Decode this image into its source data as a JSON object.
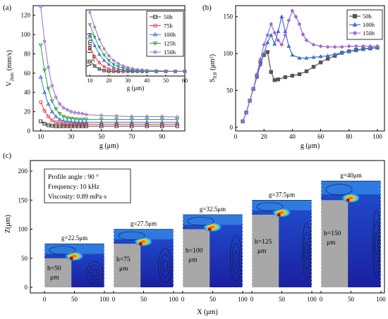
{
  "chart_data": [
    {
      "panel": "(a)",
      "type": "line",
      "xlabel": "g (μm)",
      "ylabel_main": "V",
      "ylabel_sub": "2nm",
      "ylabel_unit": "(mm/s)",
      "xlim": [
        5,
        105
      ],
      "ylim": [
        0,
        130
      ],
      "xticks": [
        10,
        30,
        50,
        70,
        90
      ],
      "yticks": [
        0,
        20,
        40,
        60,
        80,
        100,
        120
      ],
      "x": [
        10,
        12.5,
        15,
        17.5,
        20,
        22.5,
        25,
        27.5,
        30,
        32.5,
        35,
        37.5,
        40,
        50,
        60,
        70,
        80,
        90,
        100
      ],
      "series": [
        {
          "name": "50h",
          "color": "#404040",
          "marker": "square",
          "values": [
            10,
            7.5,
            6,
            5.5,
            5,
            5,
            5,
            5,
            5,
            5,
            5,
            5,
            5,
            5,
            5,
            5,
            5,
            5,
            5
          ]
        },
        {
          "name": "75h",
          "color": "#e23b3b",
          "marker": "circle",
          "values": [
            30,
            21,
            15,
            11,
            9,
            8,
            7.5,
            7,
            7,
            7,
            7,
            7,
            7,
            7,
            7,
            7,
            7,
            7,
            7
          ]
        },
        {
          "name": "100h",
          "color": "#3f6fd1",
          "marker": "triangle-up",
          "values": [
            56,
            40,
            28,
            20,
            15,
            12,
            10.5,
            10,
            9.5,
            9.2,
            9,
            9,
            9,
            9,
            9,
            9,
            9,
            9,
            9
          ]
        },
        {
          "name": "125h",
          "color": "#2e9e46",
          "marker": "triangle-down",
          "values": [
            89,
            63,
            44,
            31,
            23,
            18,
            15,
            13.5,
            13,
            12.5,
            12,
            12,
            12,
            12,
            12,
            12,
            12,
            12,
            12
          ]
        },
        {
          "name": "150h",
          "color": "#9b6ad0",
          "marker": "diamond",
          "values": [
            129,
            93,
            66,
            47,
            35,
            28,
            24,
            22,
            20,
            19,
            18.5,
            18,
            17,
            16,
            15.5,
            15,
            15,
            15,
            14.5
          ]
        }
      ],
      "inset": {
        "xlabel": "g (μm)",
        "ylabel_main": "V",
        "ylabel_sup": "0",
        "ylabel_sub": "2nm",
        "ylabel_unit": "(mm/s)",
        "xlim": [
          8,
          60
        ],
        "ylim": [
          5,
          90
        ],
        "xticks": [
          10,
          20,
          30,
          40,
          50,
          60
        ],
        "x": [
          10,
          12.5,
          15,
          17.5,
          20,
          22.5,
          25,
          27.5,
          30,
          32.5,
          35,
          37.5,
          40,
          45,
          50,
          55,
          60
        ],
        "series": [
          {
            "name": "50h",
            "values": [
              24,
              18,
              14,
              12,
              11,
              11,
              11,
              11,
              11,
              11,
              11,
              11,
              11,
              11,
              11,
              11,
              11
            ]
          },
          {
            "name": "75h",
            "values": [
              41,
              30,
              22,
              17,
              14,
              12.5,
              11.5,
              11,
              11,
              11,
              11,
              11,
              11,
              11,
              11,
              11,
              11
            ]
          },
          {
            "name": "100h",
            "values": [
              58,
              44,
              33,
              25,
              20,
              16,
              14,
              13,
              12,
              11.5,
              11,
              11,
              11,
              11,
              11,
              11,
              11
            ]
          },
          {
            "name": "125h",
            "values": [
              71,
              55,
              42,
              32,
              25,
              20,
              17,
              15,
              13.5,
              12.5,
              12,
              11.5,
              11,
              11,
              11,
              11,
              11
            ]
          },
          {
            "name": "150h",
            "values": [
              87,
              68,
              52,
              40,
              31,
              25,
              21,
              18,
              16,
              14.5,
              13.5,
              13,
              12.5,
              12,
              11.5,
              11,
              11
            ]
          }
        ]
      },
      "legend": "top-right"
    },
    {
      "panel": "(b)",
      "type": "line",
      "xlabel": "g (μm)",
      "ylabel_main": "S",
      "ylabel_sub": "0.8",
      "ylabel_unit": "(μm²)",
      "xlim": [
        0,
        105
      ],
      "ylim": [
        -5,
        165
      ],
      "xticks": [
        0,
        20,
        40,
        60,
        80,
        100
      ],
      "yticks": [
        0,
        50,
        100,
        150
      ],
      "series": [
        {
          "name": "50h",
          "color": "#555555",
          "marker": "square",
          "x": [
            5,
            7.5,
            10,
            12.5,
            15,
            17.5,
            20,
            22.5,
            25,
            27.5,
            30,
            35,
            40,
            45,
            50,
            55,
            60,
            65,
            70,
            75,
            80,
            85,
            90,
            95,
            100
          ],
          "values": [
            8,
            20,
            36,
            52,
            70,
            88,
            98,
            102,
            75,
            64,
            65,
            68,
            70,
            72,
            76,
            82,
            88,
            93,
            97,
            101,
            103,
            105,
            106,
            107,
            108
          ]
        },
        {
          "name": "100h",
          "color": "#3f6fd1",
          "marker": "triangle-up",
          "x": [
            5,
            7.5,
            10,
            12.5,
            15,
            17.5,
            20,
            22.5,
            25,
            27.5,
            30,
            32.5,
            35,
            37.5,
            40,
            45,
            50,
            55,
            60,
            65,
            70,
            75,
            80,
            85,
            90,
            95,
            100
          ],
          "values": [
            8,
            20,
            36,
            52,
            68,
            85,
            100,
            115,
            125,
            113,
            130,
            150,
            130,
            110,
            98,
            94,
            94,
            95,
            96,
            97,
            99,
            101,
            103,
            104,
            106,
            108,
            108
          ]
        },
        {
          "name": "150h",
          "color": "#9b6ad0",
          "marker": "diamond",
          "x": [
            5,
            7.5,
            10,
            12.5,
            15,
            17.5,
            20,
            22.5,
            25,
            27.5,
            30,
            32.5,
            35,
            37.5,
            40,
            42.5,
            45,
            47.5,
            50,
            55,
            60,
            65,
            70,
            75,
            80,
            85,
            90,
            95,
            100
          ],
          "values": [
            8,
            20,
            36,
            52,
            72,
            92,
            112,
            125,
            140,
            128,
            118,
            112,
            125,
            145,
            158,
            150,
            140,
            126,
            118,
            112,
            110,
            109,
            109,
            109,
            110,
            110,
            110,
            110,
            110
          ]
        }
      ],
      "legend": "top-right"
    },
    {
      "panel": "(c)",
      "type": "heatmap",
      "xlabel": "X (μm)",
      "ylabel": "Z(μm)",
      "ylim": [
        0,
        200
      ],
      "yticks": [
        0,
        50,
        100,
        150,
        200
      ],
      "xticks": [
        0,
        50,
        100
      ],
      "annotation": {
        "line1": "Profile angle : 90 °",
        "line2": "Frequency: 10 kHz",
        "line3": "Viscosity: 0.89 mPa·s"
      },
      "panels": [
        {
          "g_label": "g=22.5μm",
          "h_label": "h=50",
          "h_unit": "μm",
          "h": 50,
          "g": 22.5
        },
        {
          "g_label": "g=27.5μm",
          "h_label": "h=75",
          "h_unit": "μm",
          "h": 75,
          "g": 27.5
        },
        {
          "g_label": "g=32.5μm",
          "h_label": "h=100",
          "h_unit": "μm",
          "h": 100,
          "g": 32.5
        },
        {
          "g_label": "g=37.5μm",
          "h_label": "h=125",
          "h_unit": "μm",
          "h": 125,
          "g": 37.5
        },
        {
          "g_label": "g=40μm",
          "h_label": "h=150",
          "h_unit": "μm",
          "h": 150,
          "g": 40
        }
      ]
    }
  ]
}
